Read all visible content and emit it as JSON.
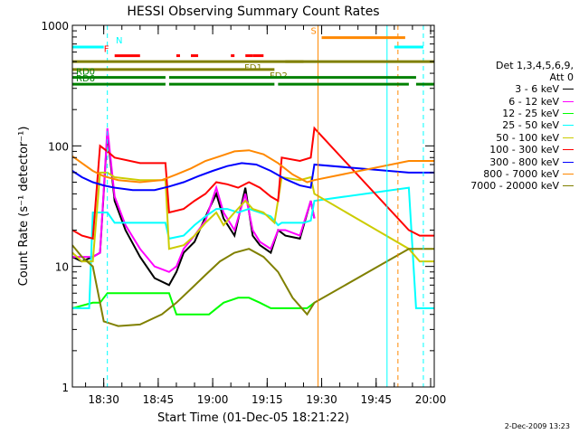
{
  "chart_data": {
    "type": "line",
    "title": "HESSI Observing Summary Count Rates",
    "xlabel": "Start Time (01-Dec-05 18:21:22)",
    "ylabel": "Count Rate (s⁻¹ detector⁻¹)",
    "yscale": "log",
    "ylim": [
      1,
      1000
    ],
    "xlim": [
      "18:21:22",
      "20:01:00"
    ],
    "x_ticks": [
      "18:30",
      "18:45",
      "19:00",
      "19:15",
      "19:30",
      "19:45",
      "20:00"
    ],
    "y_ticks": [
      "1",
      "10",
      "100",
      "1000"
    ],
    "legend_header": [
      "Det 1,3,4,5,6,9,",
      "Att 0"
    ],
    "legend_position": "right",
    "series": [
      {
        "name": "3 - 6 keV",
        "color": "#000000",
        "points": [
          [
            "18:21:22",
            12
          ],
          [
            "18:24",
            11
          ],
          [
            "18:27",
            12
          ],
          [
            "18:29",
            13
          ],
          [
            "18:31",
            130
          ],
          [
            "18:33",
            35
          ],
          [
            "18:36",
            20
          ],
          [
            "18:40",
            12
          ],
          [
            "18:44",
            8
          ],
          [
            "18:48",
            7
          ],
          [
            "18:50",
            9
          ],
          [
            "18:52",
            13
          ],
          [
            "18:55",
            16
          ],
          [
            "18:57",
            22
          ],
          [
            "18:59",
            30
          ],
          [
            "19:01",
            40
          ],
          [
            "19:03",
            25
          ],
          [
            "19:06",
            18
          ],
          [
            "19:09",
            45
          ],
          [
            "19:11",
            18
          ],
          [
            "19:13",
            15
          ],
          [
            "19:16",
            13
          ],
          [
            "19:18",
            20
          ],
          [
            "19:20",
            18
          ],
          [
            "19:24",
            17
          ],
          [
            "19:27",
            35
          ],
          [
            "19:28",
            25
          ]
        ]
      },
      {
        "name": "6 - 12 keV",
        "color": "#ff00ff",
        "points": [
          [
            "18:21:22",
            12
          ],
          [
            "18:27",
            12
          ],
          [
            "18:29",
            13
          ],
          [
            "18:31",
            140
          ],
          [
            "18:33",
            38
          ],
          [
            "18:36",
            22
          ],
          [
            "18:40",
            14
          ],
          [
            "18:44",
            10
          ],
          [
            "18:48",
            9
          ],
          [
            "18:50",
            10
          ],
          [
            "18:52",
            14
          ],
          [
            "18:55",
            18
          ],
          [
            "18:58",
            24
          ],
          [
            "19:01",
            45
          ],
          [
            "19:03",
            28
          ],
          [
            "19:06",
            20
          ],
          [
            "19:09",
            40
          ],
          [
            "19:11",
            20
          ],
          [
            "19:13",
            16
          ],
          [
            "19:16",
            14
          ],
          [
            "19:18",
            20
          ],
          [
            "19:20",
            20
          ],
          [
            "19:24",
            18
          ],
          [
            "19:27",
            35
          ],
          [
            "19:28",
            25
          ]
        ]
      },
      {
        "name": "12 - 25 keV",
        "color": "#00ff00",
        "points": [
          [
            "18:21:22",
            4.5
          ],
          [
            "18:27",
            5
          ],
          [
            "18:29",
            5
          ],
          [
            "18:31",
            6
          ],
          [
            "18:36",
            6
          ],
          [
            "18:40",
            6
          ],
          [
            "18:44",
            6
          ],
          [
            "18:48",
            6
          ],
          [
            "18:50",
            4
          ],
          [
            "18:53",
            4
          ],
          [
            "18:56",
            4
          ],
          [
            "18:59",
            4
          ],
          [
            "19:03",
            5
          ],
          [
            "19:07",
            5.5
          ],
          [
            "19:10",
            5.5
          ],
          [
            "19:13",
            5
          ],
          [
            "19:16",
            4.5
          ],
          [
            "19:19",
            4.5
          ],
          [
            "19:22",
            4.5
          ],
          [
            "19:26",
            4.5
          ],
          [
            "19:28",
            5
          ]
        ]
      },
      {
        "name": "25 - 50 keV",
        "color": "#00ffff",
        "points": [
          [
            "18:21:22",
            4.5
          ],
          [
            "18:24",
            4.5
          ],
          [
            "18:26",
            4.5
          ],
          [
            "18:27",
            28
          ],
          [
            "18:31",
            28
          ],
          [
            "18:33",
            23
          ],
          [
            "18:40",
            23
          ],
          [
            "18:46",
            23
          ],
          [
            "18:47",
            23
          ],
          [
            "18:48",
            17
          ],
          [
            "18:52",
            18
          ],
          [
            "18:55",
            22
          ],
          [
            "18:58",
            26
          ],
          [
            "19:01",
            30
          ],
          [
            "19:04",
            30
          ],
          [
            "19:07",
            28
          ],
          [
            "19:10",
            30
          ],
          [
            "19:13",
            28
          ],
          [
            "19:16",
            26
          ],
          [
            "19:18",
            22
          ],
          [
            "19:19",
            23
          ],
          [
            "19:25",
            23
          ],
          [
            "19:27",
            24
          ],
          [
            "19:28",
            35
          ],
          [
            "19:54",
            45
          ],
          [
            "19:56",
            4.5
          ],
          [
            "20:01",
            4.5
          ]
        ]
      },
      {
        "name": "50 - 100 keV",
        "color": "#cccc00",
        "points": [
          [
            "18:21:22",
            13
          ],
          [
            "18:24",
            11
          ],
          [
            "18:27",
            11
          ],
          [
            "18:29",
            60
          ],
          [
            "18:31",
            60
          ],
          [
            "18:33",
            55
          ],
          [
            "18:40",
            52
          ],
          [
            "18:46",
            52
          ],
          [
            "18:47",
            52
          ],
          [
            "18:48",
            14
          ],
          [
            "18:52",
            15
          ],
          [
            "18:55",
            18
          ],
          [
            "18:58",
            23
          ],
          [
            "19:01",
            28
          ],
          [
            "19:03",
            22
          ],
          [
            "19:06",
            28
          ],
          [
            "19:09",
            35
          ],
          [
            "19:11",
            30
          ],
          [
            "19:14",
            28
          ],
          [
            "19:17",
            23
          ],
          [
            "19:19",
            55
          ],
          [
            "19:24",
            52
          ],
          [
            "19:27",
            55
          ],
          [
            "19:28",
            40
          ],
          [
            "19:54",
            14
          ],
          [
            "19:57",
            11
          ],
          [
            "20:01",
            11
          ]
        ]
      },
      {
        "name": "100 - 300 keV",
        "color": "#ff0000",
        "points": [
          [
            "18:21:22",
            20
          ],
          [
            "18:24",
            18
          ],
          [
            "18:27",
            17
          ],
          [
            "18:29",
            100
          ],
          [
            "18:31",
            90
          ],
          [
            "18:33",
            80
          ],
          [
            "18:40",
            72
          ],
          [
            "18:46",
            72
          ],
          [
            "18:47",
            72
          ],
          [
            "18:48",
            28
          ],
          [
            "18:52",
            30
          ],
          [
            "18:55",
            35
          ],
          [
            "18:58",
            40
          ],
          [
            "19:01",
            50
          ],
          [
            "19:04",
            48
          ],
          [
            "19:07",
            45
          ],
          [
            "19:10",
            50
          ],
          [
            "19:13",
            45
          ],
          [
            "19:16",
            38
          ],
          [
            "19:18",
            35
          ],
          [
            "19:19",
            80
          ],
          [
            "19:24",
            75
          ],
          [
            "19:27",
            80
          ],
          [
            "19:28",
            140
          ],
          [
            "19:54",
            20
          ],
          [
            "19:57",
            18
          ],
          [
            "20:01",
            18
          ]
        ]
      },
      {
        "name": "300 - 800 keV",
        "color": "#0000ff",
        "points": [
          [
            "18:21:22",
            62
          ],
          [
            "18:24",
            55
          ],
          [
            "18:27",
            50
          ],
          [
            "18:30",
            47
          ],
          [
            "18:33",
            45
          ],
          [
            "18:38",
            43
          ],
          [
            "18:44",
            43
          ],
          [
            "18:48",
            46
          ],
          [
            "18:52",
            50
          ],
          [
            "18:56",
            56
          ],
          [
            "19:00",
            62
          ],
          [
            "19:04",
            68
          ],
          [
            "19:08",
            72
          ],
          [
            "19:12",
            70
          ],
          [
            "19:16",
            62
          ],
          [
            "19:20",
            53
          ],
          [
            "19:24",
            47
          ],
          [
            "19:27",
            45
          ],
          [
            "19:28",
            70
          ],
          [
            "19:54",
            60
          ],
          [
            "19:57",
            60
          ],
          [
            "20:01",
            60
          ]
        ]
      },
      {
        "name": "800 - 7000 keV",
        "color": "#ff8800",
        "points": [
          [
            "18:21:22",
            82
          ],
          [
            "18:24",
            72
          ],
          [
            "18:27",
            62
          ],
          [
            "18:30",
            56
          ],
          [
            "18:34",
            52
          ],
          [
            "18:40",
            50
          ],
          [
            "18:46",
            52
          ],
          [
            "18:50",
            58
          ],
          [
            "18:54",
            65
          ],
          [
            "18:58",
            75
          ],
          [
            "19:02",
            82
          ],
          [
            "19:06",
            90
          ],
          [
            "19:10",
            92
          ],
          [
            "19:14",
            85
          ],
          [
            "19:18",
            72
          ],
          [
            "19:22",
            58
          ],
          [
            "19:26",
            50
          ],
          [
            "19:28",
            52
          ],
          [
            "19:54",
            75
          ],
          [
            "19:57",
            75
          ],
          [
            "20:01",
            75
          ]
        ]
      },
      {
        "name": "7000 - 20000 keV",
        "color": "#808000",
        "points": [
          [
            "18:21:22",
            15
          ],
          [
            "18:24",
            12
          ],
          [
            "18:27",
            10
          ],
          [
            "18:30",
            3.5
          ],
          [
            "18:34",
            3.2
          ],
          [
            "18:40",
            3.3
          ],
          [
            "18:46",
            4
          ],
          [
            "18:50",
            5
          ],
          [
            "18:54",
            6.5
          ],
          [
            "18:58",
            8.5
          ],
          [
            "19:02",
            11
          ],
          [
            "19:06",
            13
          ],
          [
            "19:10",
            14
          ],
          [
            "19:14",
            12
          ],
          [
            "19:18",
            9
          ],
          [
            "19:22",
            5.5
          ],
          [
            "19:26",
            4
          ],
          [
            "19:28",
            5
          ],
          [
            "19:54",
            14
          ],
          [
            "19:57",
            14
          ],
          [
            "20:01",
            14
          ]
        ]
      }
    ],
    "state_bars": [
      {
        "label": "N",
        "color": "#00ffff",
        "segments": [
          [
            "18:21:22",
            "18:30"
          ],
          [
            "19:50",
            "19:58"
          ]
        ]
      },
      {
        "label": "S",
        "color": "#ff8800",
        "segments": [
          [
            "19:30",
            "19:53"
          ]
        ]
      },
      {
        "label": "F",
        "color": "#ff0000",
        "segments": [
          [
            "18:33",
            "18:40"
          ],
          [
            "18:50",
            "18:51"
          ],
          [
            "18:54",
            "18:56"
          ],
          [
            "19:05",
            "19:06"
          ],
          [
            "19:09",
            "19:11"
          ],
          [
            "19:11",
            "19:14"
          ]
        ]
      },
      {
        "label": "FD1",
        "color": "#808000",
        "segments": [
          [
            "18:21:22",
            "19:25"
          ],
          [
            "19:20",
            "20:01"
          ]
        ]
      },
      {
        "label": "FD2",
        "color": "#808000",
        "segments": [
          [
            "18:21:22",
            "19:17"
          ]
        ]
      },
      {
        "label": "RD0",
        "color": "#008000",
        "segments": [
          [
            "18:21:22",
            "18:47"
          ],
          [
            "18:48",
            "19:56"
          ]
        ]
      },
      {
        "label": "RD6",
        "color": "#008000",
        "segments": [
          [
            "18:21:22",
            "18:47"
          ],
          [
            "18:48",
            "19:17"
          ],
          [
            "19:18",
            "19:54"
          ],
          [
            "19:56",
            "20:01"
          ]
        ]
      }
    ],
    "vertical_markers": [
      {
        "time": "18:31",
        "color": "#00ffff",
        "style": "dashed"
      },
      {
        "time": "19:29",
        "color": "#ff8800",
        "style": "solid"
      },
      {
        "time": "19:48",
        "color": "#00ffff",
        "style": "solid"
      },
      {
        "time": "19:51",
        "color": "#ff8800",
        "style": "dashed"
      },
      {
        "time": "19:58",
        "color": "#00ffff",
        "style": "dashed"
      }
    ],
    "grid": false
  },
  "footer_stamp": "2-Dec-2009 13:23"
}
